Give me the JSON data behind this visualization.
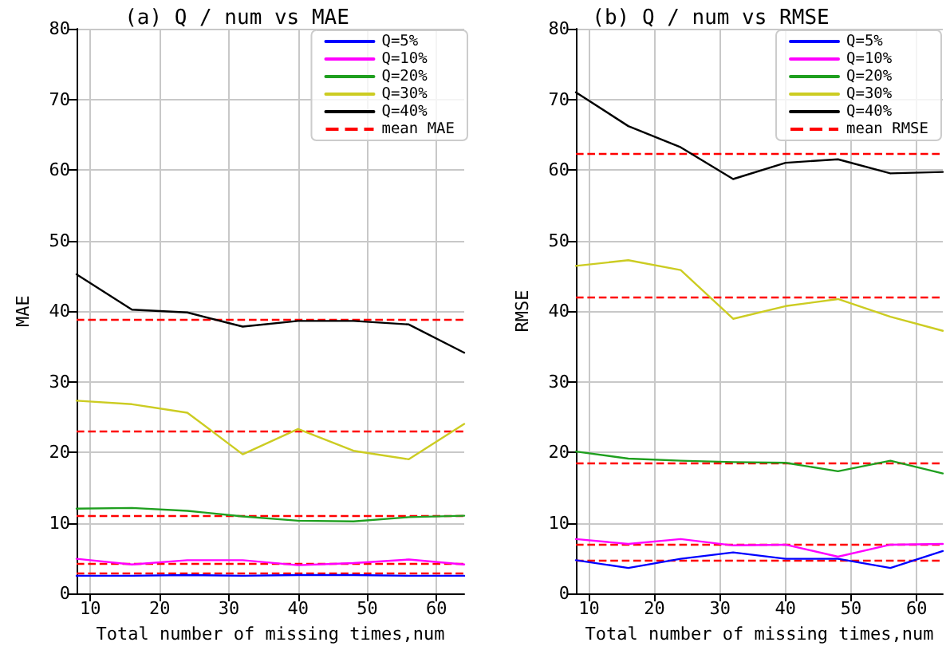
{
  "chart_data": [
    {
      "type": "line",
      "title": "(a) Q / num vs MAE",
      "xlabel": "Total number of missing times,num",
      "ylabel": "MAE",
      "x": [
        8,
        16,
        24,
        32,
        40,
        48,
        56,
        64
      ],
      "xlim": [
        8,
        64
      ],
      "xticks": [
        10,
        20,
        30,
        40,
        50,
        60
      ],
      "ylim": [
        0,
        80
      ],
      "yticks": [
        0,
        10,
        20,
        30,
        40,
        50,
        60,
        70,
        80
      ],
      "grid": true,
      "legend": "top right",
      "marker": "none",
      "line_style": "solid",
      "series": [
        {
          "name": "Q=5%",
          "color": "#0000ff",
          "values": [
            2.5,
            2.5,
            2.6,
            2.5,
            2.6,
            2.6,
            2.5,
            2.5
          ]
        },
        {
          "name": "Q=10%",
          "color": "#ff00ff",
          "values": [
            4.9,
            4.1,
            4.7,
            4.7,
            4.0,
            4.3,
            4.8,
            4.1
          ]
        },
        {
          "name": "Q=20%",
          "color": "#1f9f1f",
          "values": [
            12.0,
            12.1,
            11.7,
            10.9,
            10.3,
            10.2,
            10.8,
            11.0
          ]
        },
        {
          "name": "Q=30%",
          "color": "#cccc22",
          "values": [
            27.3,
            26.8,
            25.6,
            19.7,
            23.3,
            20.2,
            19.0,
            24.0
          ]
        },
        {
          "name": "Q=40%",
          "color": "#000000",
          "values": [
            45.2,
            40.2,
            39.8,
            37.8,
            38.6,
            38.6,
            38.1,
            34.1
          ]
        }
      ],
      "ref_lines": [
        {
          "axis": "y",
          "value": 38.9,
          "label": "mean MAE",
          "color": "#ff0000",
          "line_style": "dashed"
        },
        {
          "axis": "y",
          "value": 23.1,
          "label": null,
          "color": "#ff0000",
          "line_style": "dashed"
        },
        {
          "axis": "y",
          "value": 11.0,
          "label": null,
          "color": "#ff0000",
          "line_style": "dashed"
        },
        {
          "axis": "y",
          "value": 4.3,
          "label": null,
          "color": "#ff0000",
          "line_style": "dashed"
        },
        {
          "axis": "y",
          "value": 2.8,
          "label": null,
          "color": "#ff0000",
          "line_style": "dashed"
        }
      ]
    },
    {
      "type": "line",
      "title": "(b) Q / num vs RMSE",
      "xlabel": "Total number of missing times,num",
      "ylabel": "RMSE",
      "x": [
        8,
        16,
        24,
        32,
        40,
        48,
        56,
        64
      ],
      "xlim": [
        8,
        64
      ],
      "xticks": [
        10,
        20,
        30,
        40,
        50,
        60
      ],
      "ylim": [
        0,
        80
      ],
      "yticks": [
        0,
        10,
        20,
        30,
        40,
        50,
        60,
        70,
        80
      ],
      "grid": true,
      "legend": "top right",
      "marker": "none",
      "line_style": "solid",
      "series": [
        {
          "name": "Q=5%",
          "color": "#0000ff",
          "values": [
            4.7,
            3.6,
            4.9,
            5.8,
            4.9,
            4.9,
            3.6,
            6.0
          ]
        },
        {
          "name": "Q=10%",
          "color": "#ff00ff",
          "values": [
            7.7,
            7.0,
            7.7,
            6.8,
            6.9,
            5.2,
            6.9,
            7.0
          ]
        },
        {
          "name": "Q=20%",
          "color": "#1f9f1f",
          "values": [
            20.1,
            19.1,
            18.8,
            18.6,
            18.5,
            17.3,
            18.8,
            17.0
          ]
        },
        {
          "name": "Q=30%",
          "color": "#cccc22",
          "values": [
            46.4,
            47.2,
            45.8,
            38.9,
            40.7,
            41.7,
            39.2,
            37.2
          ]
        },
        {
          "name": "Q=40%",
          "color": "#000000",
          "values": [
            71.0,
            66.2,
            63.2,
            58.7,
            61.0,
            61.5,
            59.5,
            59.7
          ]
        }
      ],
      "ref_lines": [
        {
          "axis": "y",
          "value": 62.4,
          "label": "mean RMSE",
          "color": "#ff0000",
          "line_style": "dashed"
        },
        {
          "axis": "y",
          "value": 42.0,
          "label": null,
          "color": "#ff0000",
          "line_style": "dashed"
        },
        {
          "axis": "y",
          "value": 18.4,
          "label": null,
          "color": "#ff0000",
          "line_style": "dashed"
        },
        {
          "axis": "y",
          "value": 7.0,
          "label": null,
          "color": "#ff0000",
          "line_style": "dashed"
        },
        {
          "axis": "y",
          "value": 4.8,
          "label": null,
          "color": "#ff0000",
          "line_style": "dashed"
        }
      ]
    }
  ]
}
